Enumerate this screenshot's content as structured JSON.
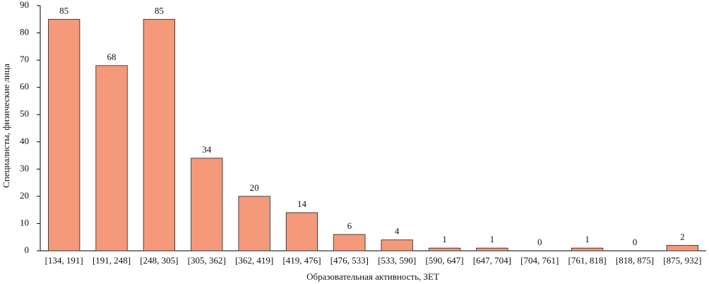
{
  "chart_data": {
    "type": "bar",
    "x_label": "Образовательная активность, ЗЕТ",
    "y_label": "Специалисты, физические лица",
    "categories": [
      "[134, 191]",
      "[191, 248]",
      "[248, 305]",
      "[305, 362]",
      "[362, 419]",
      "[419, 476]",
      "[476, 533]",
      "[533, 590]",
      "[590, 647]",
      "[647, 704]",
      "[704, 761]",
      "[761, 818]",
      "[818, 875]",
      "[875, 932]"
    ],
    "values": [
      85,
      68,
      85,
      34,
      20,
      14,
      6,
      4,
      1,
      1,
      0,
      1,
      0,
      2
    ],
    "color": "#f4997a",
    "ylim": [
      0,
      90
    ],
    "yticks": [
      0,
      10,
      20,
      30,
      40,
      50,
      60,
      70,
      80,
      90
    ],
    "grid": false
  }
}
